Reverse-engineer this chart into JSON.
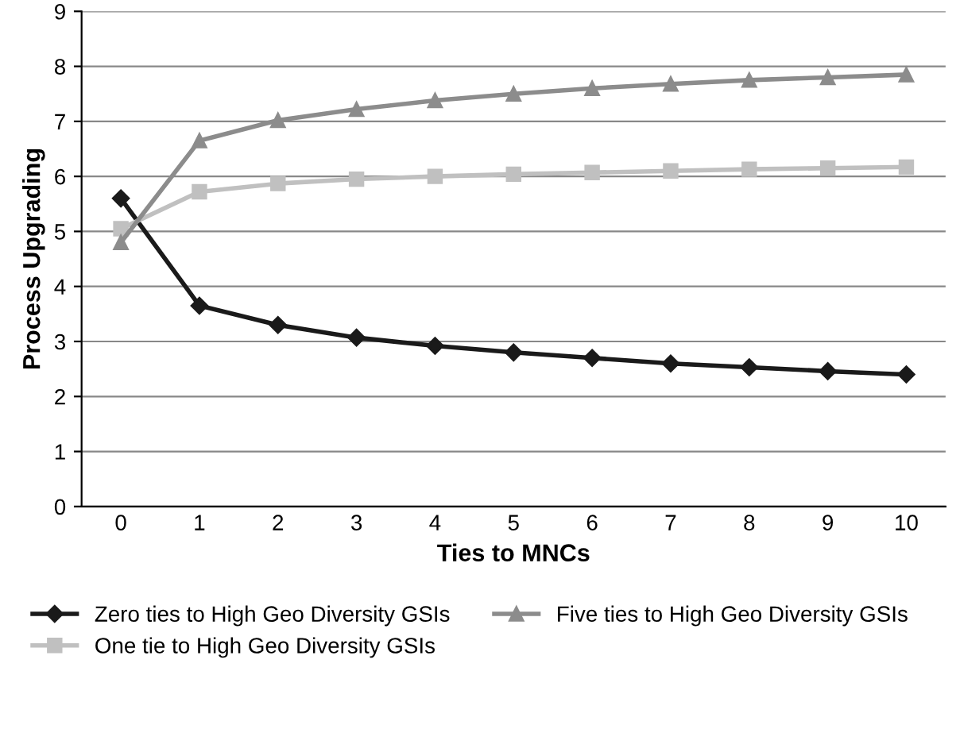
{
  "chart_data": {
    "type": "line",
    "xlabel": "Ties to MNCs",
    "ylabel": "Process Upgrading",
    "categories": [
      "0",
      "1",
      "2",
      "3",
      "4",
      "5",
      "6",
      "7",
      "8",
      "9",
      "10"
    ],
    "series": [
      {
        "name": "Zero ties to High Geo Diversity GSIs",
        "color": "#1a1a1a",
        "marker": "diamond",
        "values": [
          5.6,
          3.65,
          3.3,
          3.07,
          2.92,
          2.8,
          2.7,
          2.6,
          2.53,
          2.46,
          2.4
        ]
      },
      {
        "name": "One tie to High Geo Diversity GSIs",
        "color": "#c0c0c0",
        "marker": "square",
        "values": [
          5.05,
          5.72,
          5.87,
          5.95,
          6.0,
          6.04,
          6.07,
          6.1,
          6.13,
          6.15,
          6.17
        ]
      },
      {
        "name": "Five ties to High Geo Diversity GSIs",
        "color": "#8c8c8c",
        "marker": "triangle",
        "values": [
          4.8,
          6.65,
          7.02,
          7.22,
          7.38,
          7.5,
          7.6,
          7.68,
          7.75,
          7.8,
          7.85
        ]
      }
    ],
    "ylim": [
      0,
      9
    ],
    "yticks": [
      0,
      1,
      2,
      3,
      4,
      5,
      6,
      7,
      8,
      9
    ],
    "grid": "y",
    "legend": "bottom",
    "line_style": "solid"
  }
}
